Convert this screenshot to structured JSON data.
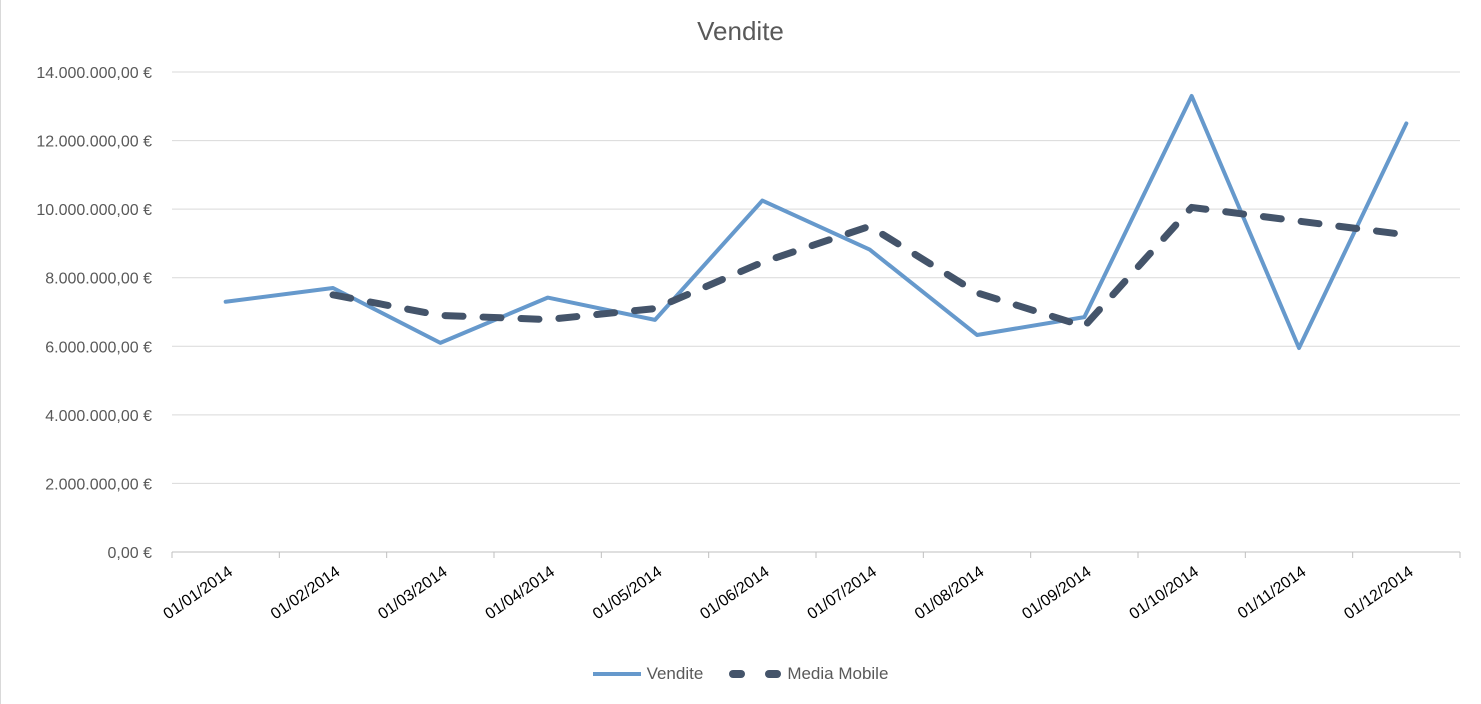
{
  "chart_data": {
    "type": "line",
    "title": "Vendite",
    "xlabel": "",
    "ylabel": "",
    "categories": [
      "01/01/2014",
      "01/02/2014",
      "01/03/2014",
      "01/04/2014",
      "01/05/2014",
      "01/06/2014",
      "01/07/2014",
      "01/08/2014",
      "01/09/2014",
      "01/10/2014",
      "01/11/2014",
      "01/12/2014"
    ],
    "ylim": [
      0,
      14000000
    ],
    "yticks": [
      "0,00 €",
      "2.000.000,00 €",
      "4.000.000,00 €",
      "6.000.000,00 €",
      "8.000.000,00 €",
      "10.000.000,00 €",
      "12.000.000,00 €",
      "14.000.000,00 €"
    ],
    "grid": true,
    "legend_position": "bottom",
    "series": [
      {
        "name": "Vendite",
        "color": "#6699cc",
        "style": "solid",
        "values": [
          7300000,
          7700000,
          6100000,
          7420000,
          6770000,
          10250000,
          8820000,
          6330000,
          6850000,
          13300000,
          5950000,
          12500000
        ]
      },
      {
        "name": "Media Mobile",
        "color": "#44546a",
        "style": "dashed",
        "values": [
          null,
          7500000,
          6900000,
          6780000,
          7100000,
          8450000,
          9500000,
          7560000,
          6580000,
          10050000,
          9650000,
          9250000
        ]
      }
    ]
  }
}
